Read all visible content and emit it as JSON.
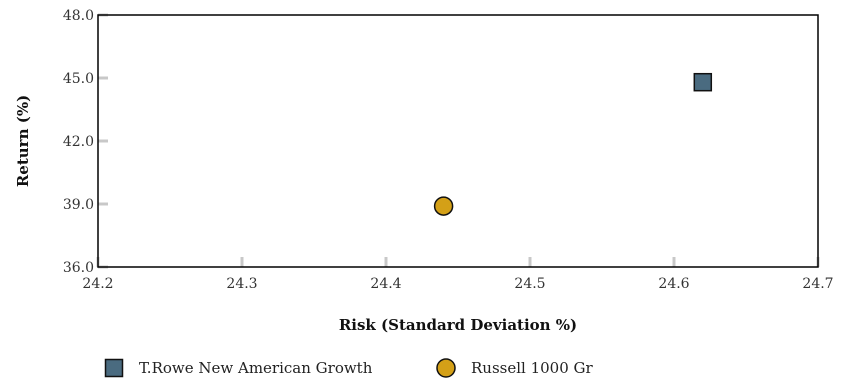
{
  "chart_data": {
    "type": "scatter",
    "xlabel": "Risk (Standard Deviation %)",
    "ylabel": "Return (%)",
    "xlim": [
      24.2,
      24.7
    ],
    "ylim": [
      36.0,
      48.0
    ],
    "x_ticks": [
      "24.2",
      "24.3",
      "24.4",
      "24.5",
      "24.6",
      "24.7"
    ],
    "y_ticks": [
      "36.0",
      "39.0",
      "42.0",
      "45.0",
      "48.0"
    ],
    "grid": false,
    "legend_position": "bottom",
    "series": [
      {
        "name": "T.Rowe New American Growth",
        "marker": "square",
        "color": "#4a6b80",
        "x": 24.62,
        "y": 44.8
      },
      {
        "name": "Russell 1000 Gr",
        "marker": "circle",
        "color": "#d4a017",
        "x": 24.44,
        "y": 38.9
      }
    ]
  }
}
